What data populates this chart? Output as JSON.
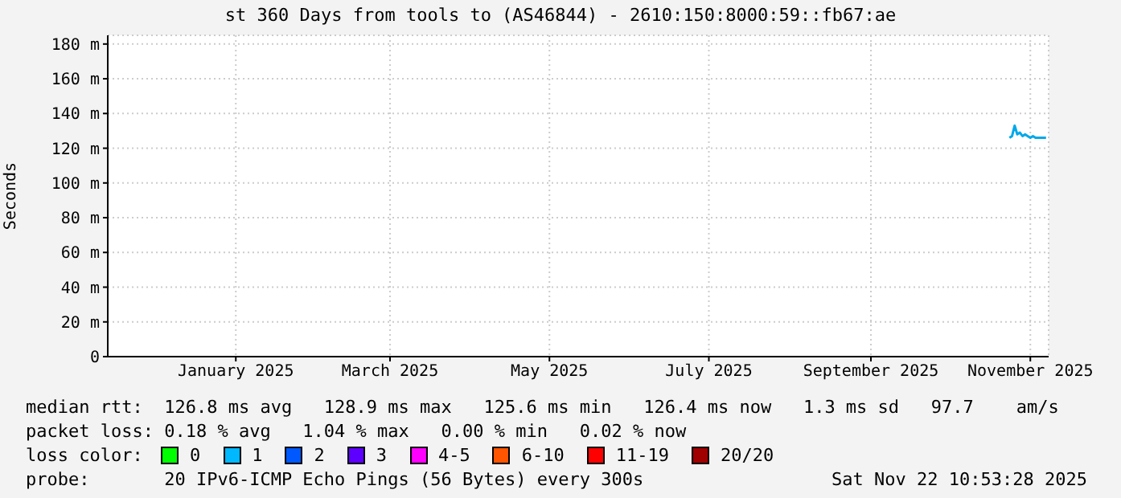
{
  "chart_data": {
    "type": "line",
    "title": "st 360 Days from tools to (AS46844) - 2610:150:8000:59::fb67:ae",
    "ylabel": "Seconds",
    "x": [
      "2025-11-07",
      "2025-11-08",
      "2025-11-09",
      "2025-11-10",
      "2025-11-11",
      "2025-11-12",
      "2025-11-13",
      "2025-11-14",
      "2025-11-15",
      "2025-11-16",
      "2025-11-17",
      "2025-11-18",
      "2025-11-19",
      "2025-11-20",
      "2025-11-21"
    ],
    "series": [
      {
        "color": "#00a8e8",
        "values": [
          126,
          127,
          133,
          128,
          129,
          127,
          128,
          127,
          126,
          127,
          126,
          126,
          126,
          126,
          126
        ]
      }
    ],
    "xlim": [
      "2024-11-27",
      "2025-11-22"
    ],
    "xticks": [
      {
        "value": "2025-01-15",
        "label": "January 2025"
      },
      {
        "value": "2025-03-15",
        "label": "March 2025"
      },
      {
        "value": "2025-05-15",
        "label": "May 2025"
      },
      {
        "value": "2025-07-15",
        "label": "July 2025"
      },
      {
        "value": "2025-09-15",
        "label": "September 2025"
      },
      {
        "value": "2025-11-15",
        "label": "November 2025"
      }
    ],
    "ylim": [
      0,
      185
    ],
    "yticks": [
      0,
      {
        "value": 20,
        "label": "20 m"
      },
      {
        "value": 40,
        "label": "40 m"
      },
      {
        "value": 60,
        "label": "60 m"
      },
      {
        "value": 80,
        "label": "80 m"
      },
      {
        "value": 100,
        "label": "100 m"
      },
      {
        "value": 120,
        "label": "120 m"
      },
      {
        "value": 140,
        "label": "140 m"
      },
      {
        "value": 160,
        "label": "160 m"
      },
      {
        "value": 180,
        "label": "180 m"
      }
    ],
    "grid": true,
    "marker": "none",
    "line_style": "solid",
    "annotations": [
      "median rtt:  126.8 ms avg   128.9 ms max   125.6 ms min   126.4 ms now   1.3 ms sd   97.7    am/s",
      "packet loss: 0.18 % avg   1.04 % max   0.00 % min   0.02 % now",
      "loss color:",
      "0",
      "1",
      "2",
      "3",
      "4-5",
      "6-10",
      "11-19",
      "20/20",
      "probe:       20 IPv6-ICMP Echo Pings (56 Bytes) every 300s",
      "Sat Nov 22 10:53:28 2025"
    ]
  }
}
